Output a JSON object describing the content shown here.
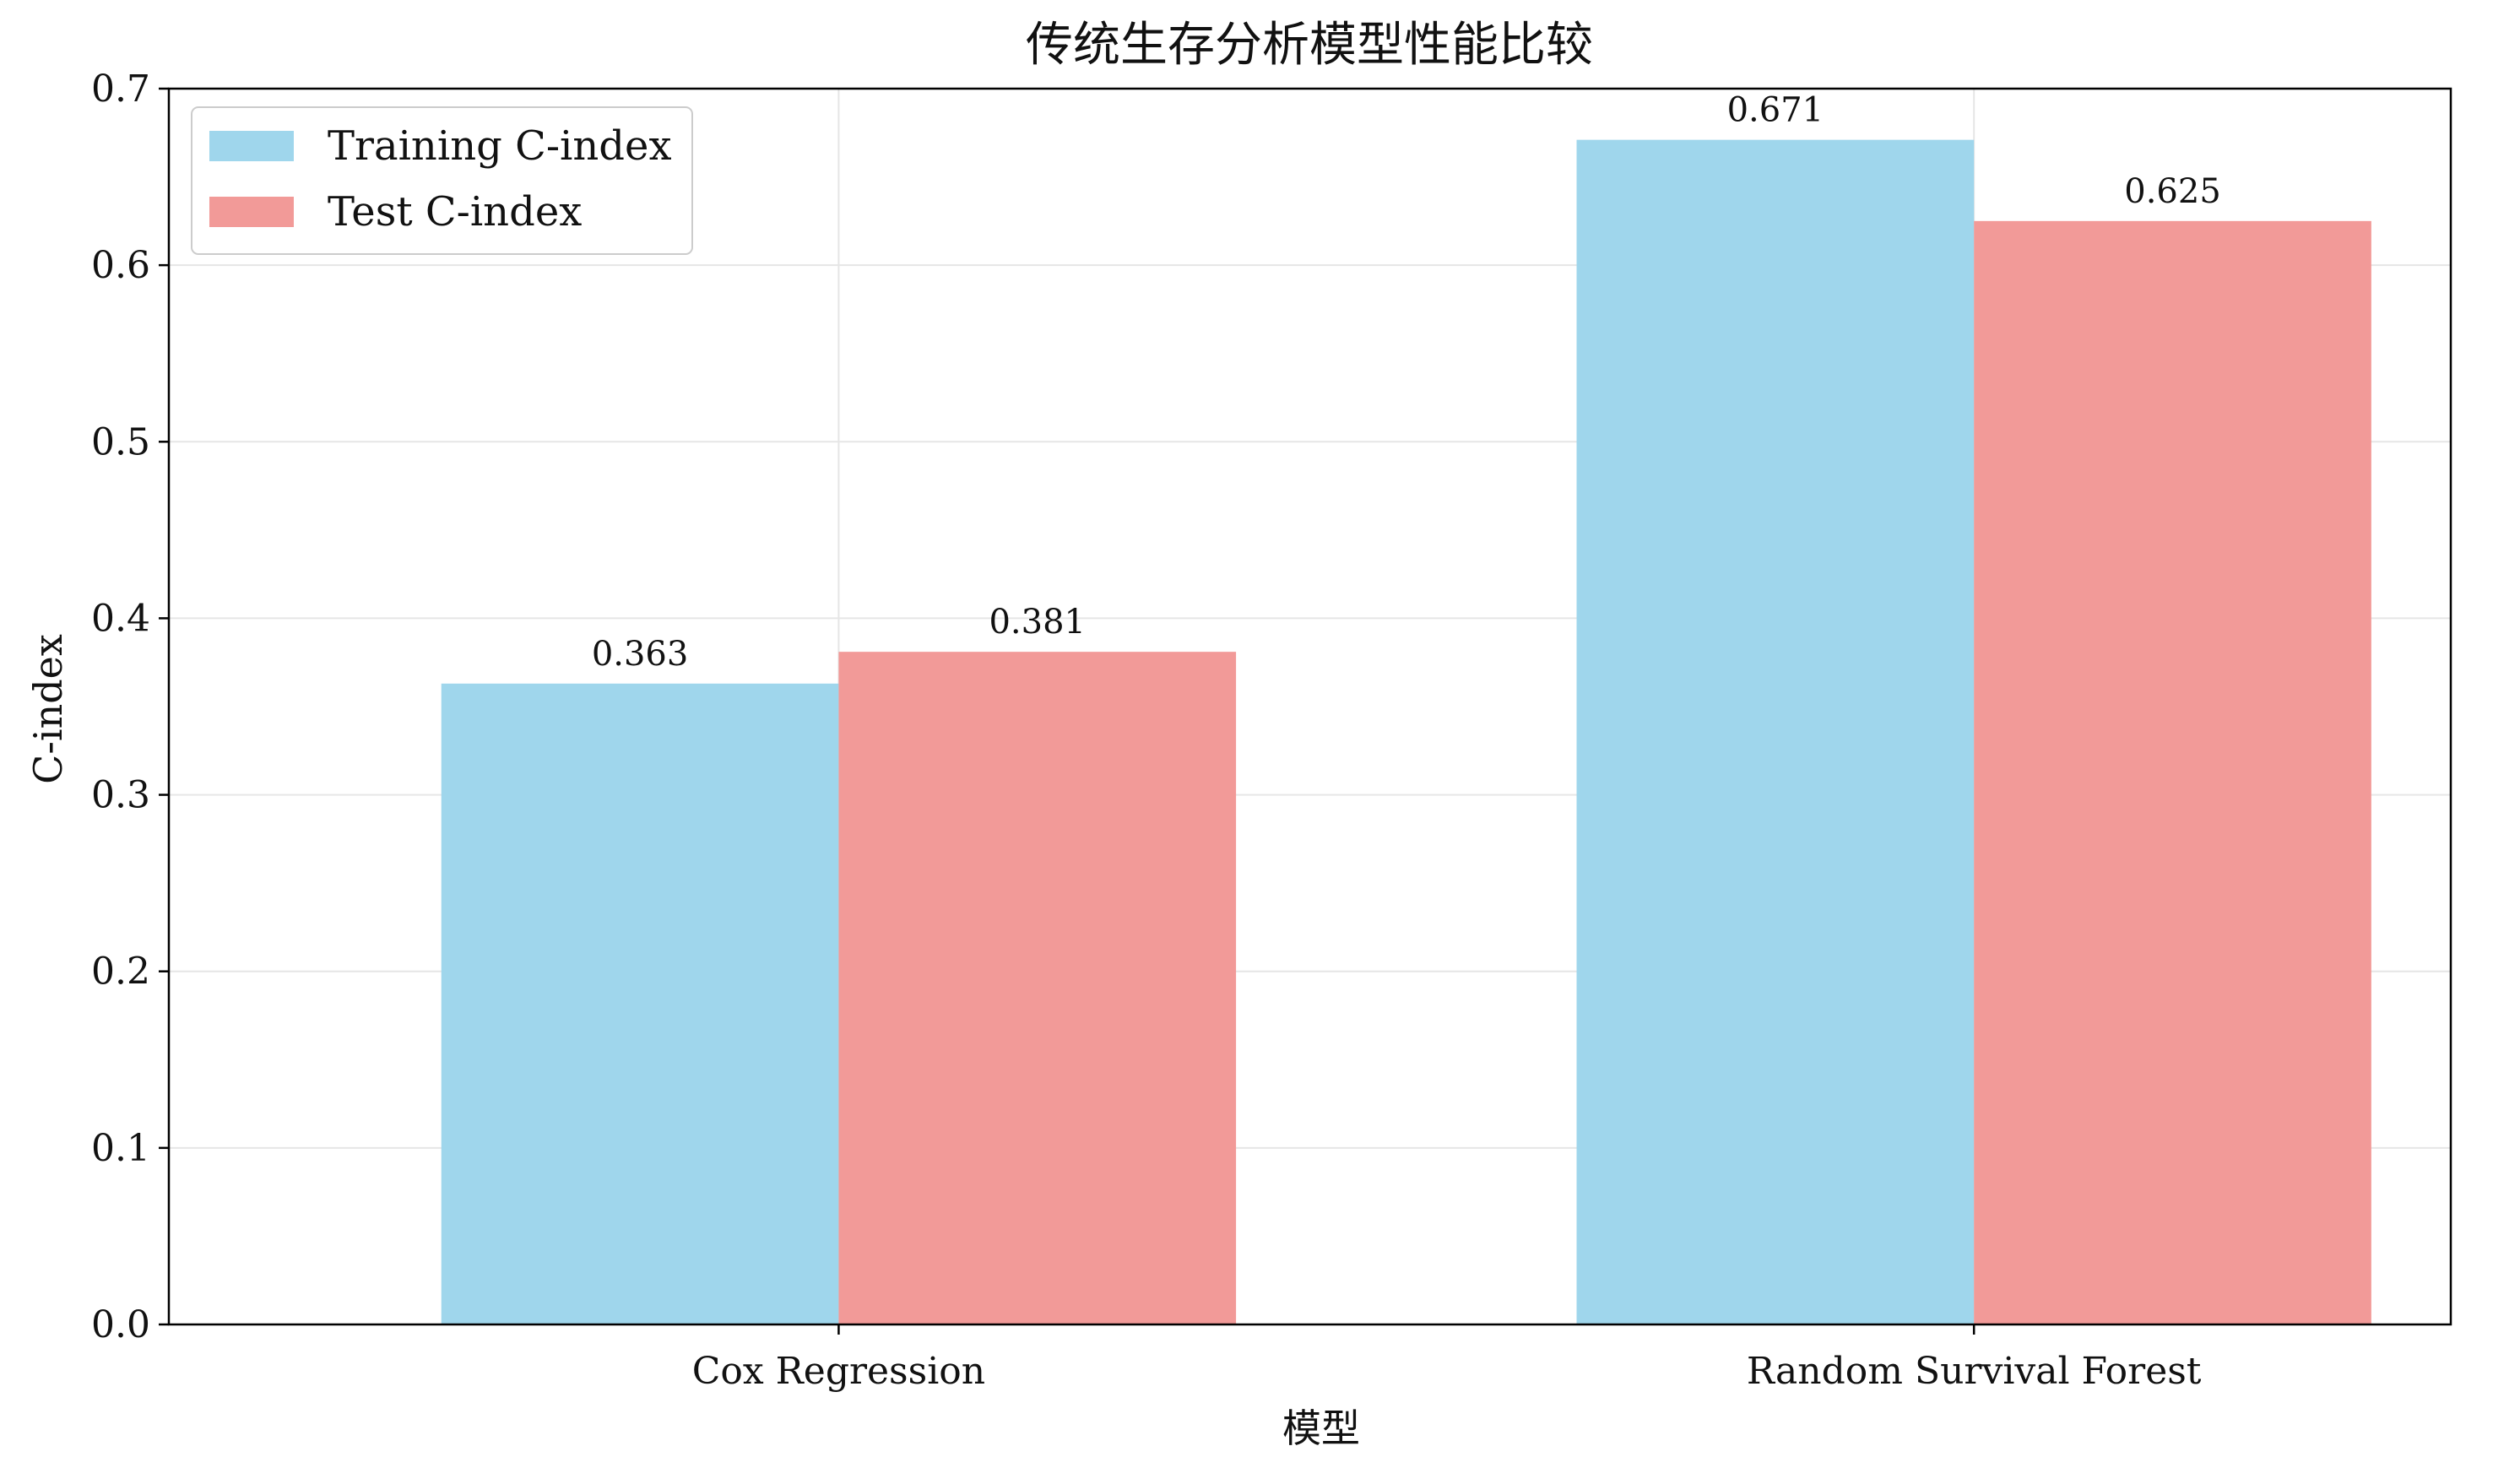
{
  "chart_data": {
    "type": "bar",
    "title": "传统生存分析模型性能比较",
    "xlabel": "模型",
    "ylabel": "C-index",
    "categories": [
      "Cox Regression",
      "Random Survival Forest"
    ],
    "series": [
      {
        "name": "Training C-index",
        "values": [
          0.363,
          0.671
        ],
        "color": "#9fd6ec"
      },
      {
        "name": "Test C-index",
        "values": [
          0.381,
          0.625
        ],
        "color": "#f29a98"
      }
    ],
    "data_labels": [
      [
        "0.363",
        "0.671"
      ],
      [
        "0.381",
        "0.625"
      ]
    ],
    "ylim": [
      0,
      0.7
    ],
    "yticks": [
      "0.0",
      "0.1",
      "0.2",
      "0.3",
      "0.4",
      "0.5",
      "0.6",
      "0.7"
    ],
    "grid": true,
    "legend_position": "top-left"
  }
}
